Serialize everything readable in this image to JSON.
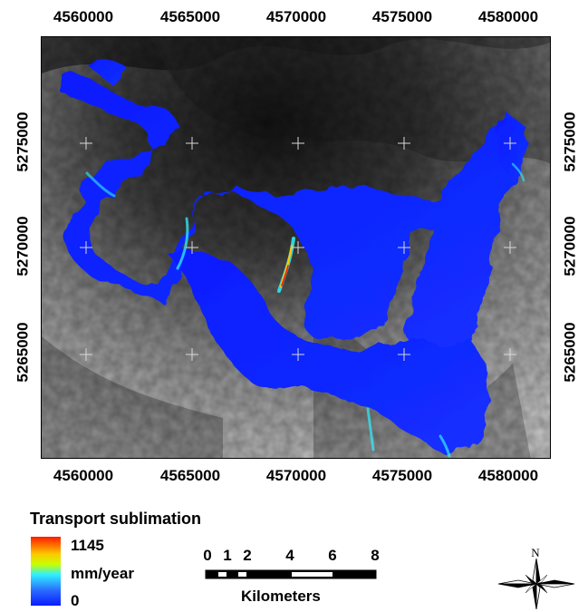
{
  "map": {
    "x_ticks": [
      "4560000",
      "4565000",
      "4570000",
      "4575000",
      "4580000"
    ],
    "y_ticks": [
      "5275000",
      "5270000",
      "5265000"
    ],
    "background": "grayscale elevation shaded relief",
    "colors": {
      "low": "#0a1cff",
      "mid": "#2ff0ff",
      "high": "#ff1a00",
      "frame": "#000000"
    }
  },
  "legend": {
    "title": "Transport sublimation",
    "max_label": "1145",
    "unit_label": "mm/year",
    "min_label": "0",
    "gradient_colors": [
      "#ff1a00",
      "#ffc800",
      "#c8ff00",
      "#2ff0ff",
      "#2a6bff",
      "#0a1cff"
    ]
  },
  "scalebar": {
    "labels": [
      "0",
      "1",
      "2",
      "4",
      "6",
      "8"
    ],
    "units": "Kilometers"
  },
  "north_arrow": {
    "label": "N"
  }
}
